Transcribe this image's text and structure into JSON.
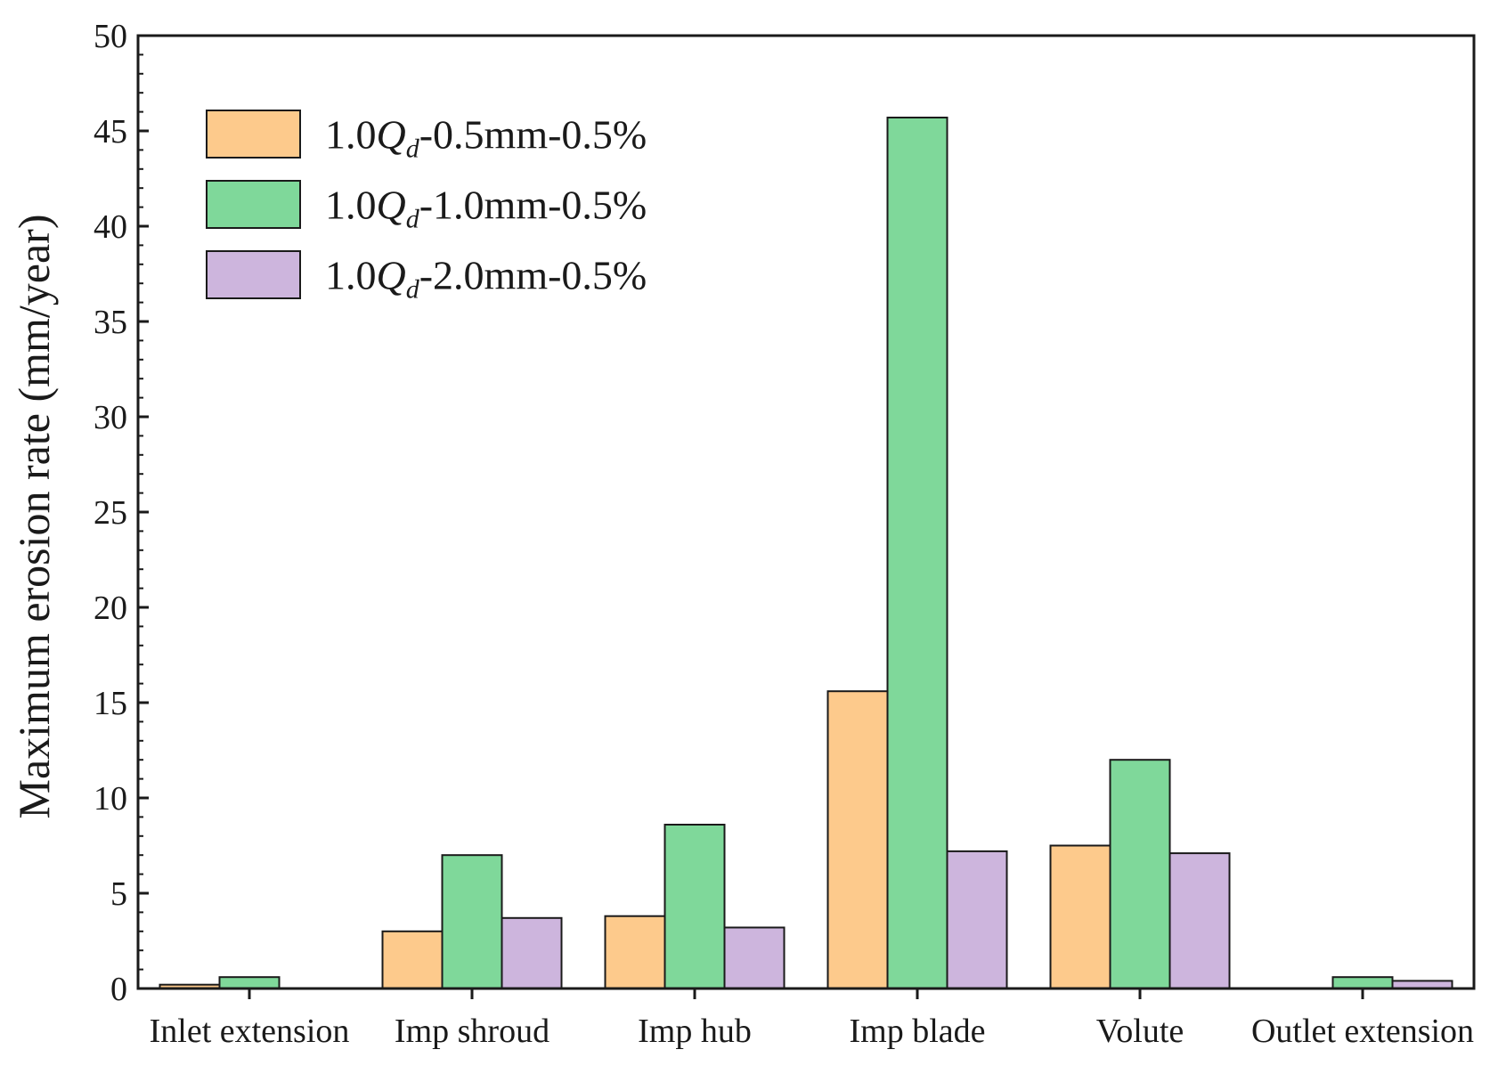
{
  "chart_data": {
    "type": "bar",
    "title": "",
    "xlabel": "",
    "ylabel": "Maximum erosion rate (mm/year)",
    "ylim": [
      0,
      50
    ],
    "yticks": [
      0,
      5,
      10,
      15,
      20,
      25,
      30,
      35,
      40,
      45,
      50
    ],
    "categories": [
      "Inlet extension",
      "Imp shroud",
      "Imp hub",
      "Imp blade",
      "Volute",
      "Outlet extension"
    ],
    "legend_position": "top-left",
    "series": [
      {
        "name": "1.0Qd-0.5mm-0.5%",
        "label_parts": {
          "pre": "1.0",
          "q": "Q",
          "sub": "d",
          "post": "-0.5mm-0.5%"
        },
        "color": "#fdca8c",
        "values": [
          0.2,
          3.0,
          3.8,
          15.6,
          7.5,
          0.0
        ]
      },
      {
        "name": "1.0Qd-1.0mm-0.5%",
        "label_parts": {
          "pre": "1.0",
          "q": "Q",
          "sub": "d",
          "post": "-1.0mm-0.5%"
        },
        "color": "#7fd89a",
        "values": [
          0.6,
          7.0,
          8.6,
          45.7,
          12.0,
          0.6
        ]
      },
      {
        "name": "1.0Qd-2.0mm-0.5%",
        "label_parts": {
          "pre": "1.0",
          "q": "Q",
          "sub": "d",
          "post": "-2.0mm-0.5%"
        },
        "color": "#cdb5dd",
        "values": [
          0.0,
          3.7,
          3.2,
          7.2,
          7.1,
          0.4
        ]
      }
    ]
  }
}
